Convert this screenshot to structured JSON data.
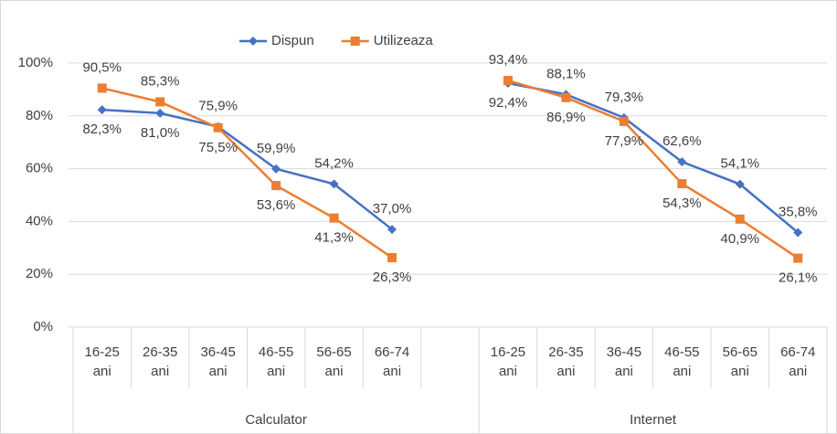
{
  "chart_data": {
    "type": "line",
    "categories": [
      "16-25 ani",
      "26-35 ani",
      "36-45 ani",
      "46-55 ani",
      "56-65 ani",
      "66-74 ani",
      null,
      "16-25 ani",
      "26-35 ani",
      "36-45 ani",
      "46-55 ani",
      "56-65 ani",
      "66-74 ani"
    ],
    "groups": [
      "Calculator",
      "Internet"
    ],
    "series": [
      {
        "name": "Dispun",
        "color": "#4472c4",
        "values": [
          82.3,
          81.0,
          75.9,
          59.9,
          54.2,
          37.0,
          null,
          92.4,
          88.1,
          79.3,
          62.6,
          54.1,
          35.8
        ],
        "value_labels": [
          "82,3%",
          "81,0%",
          "75,9%",
          "59,9%",
          "54,2%",
          "37,0%",
          null,
          "92,4%",
          "88,1%",
          "79,3%",
          "62,6%",
          "54,1%",
          "35,8%"
        ]
      },
      {
        "name": "Utilizeaza",
        "color": "#ed7d31",
        "values": [
          90.5,
          85.3,
          75.5,
          53.6,
          41.3,
          26.3,
          null,
          93.4,
          86.9,
          77.9,
          54.3,
          40.9,
          26.1
        ],
        "value_labels": [
          "90,5%",
          "85,3%",
          "75,5%",
          "53,6%",
          "41,3%",
          "26,3%",
          null,
          "93,4%",
          "86,9%",
          "77,9%",
          "54,3%",
          "40,9%",
          "26,1%"
        ]
      }
    ],
    "ylim": [
      0,
      100
    ],
    "yticks": [
      {
        "value": 0,
        "label": "0%"
      },
      {
        "value": 20,
        "label": "20%"
      },
      {
        "value": 40,
        "label": "40%"
      },
      {
        "value": 60,
        "label": "60%"
      },
      {
        "value": 80,
        "label": "80%"
      },
      {
        "value": 100,
        "label": "100%"
      }
    ],
    "grid": true,
    "legend": "top"
  }
}
